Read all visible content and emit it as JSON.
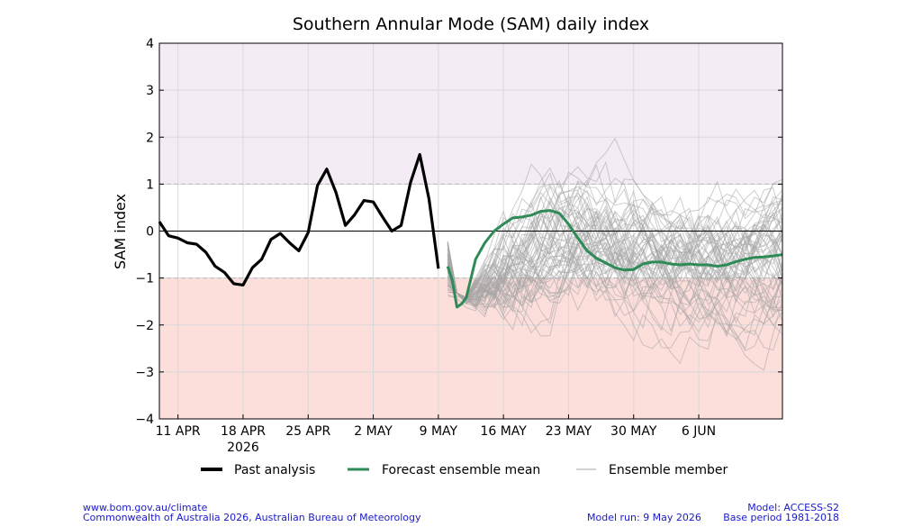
{
  "chart_data": {
    "type": "line",
    "title": "Southern Annular Mode (SAM) daily index",
    "ylabel": "SAM index",
    "xlabel": "",
    "ylim": [
      -4,
      4
    ],
    "yticks": [
      "−4",
      "−3",
      "−2",
      "−1",
      "0",
      "1",
      "2",
      "3",
      "4"
    ],
    "xlim_day": [
      0,
      67
    ],
    "x_tick_labels": [
      {
        "day": 2,
        "label": "11 APR"
      },
      {
        "day": 9,
        "label": "18 APR",
        "sublabel": "2026"
      },
      {
        "day": 16,
        "label": "25 APR"
      },
      {
        "day": 23,
        "label": "2 MAY"
      },
      {
        "day": 30,
        "label": "9 MAY"
      },
      {
        "day": 37,
        "label": "16 MAY"
      },
      {
        "day": 44,
        "label": "23 MAY"
      },
      {
        "day": 51,
        "label": "30 MAY"
      },
      {
        "day": 58,
        "label": "6 JUN"
      }
    ],
    "bands": [
      {
        "from": 1,
        "to": 4,
        "color": "#f3ecf4"
      },
      {
        "from": -4,
        "to": -1,
        "color": "#fcdedb"
      }
    ],
    "grid": true,
    "legend_position": "bottom",
    "series": [
      {
        "name": "Past analysis",
        "color": "#000000",
        "x": [
          0,
          1,
          2,
          3,
          4,
          5,
          6,
          7,
          8,
          9,
          10,
          11,
          12,
          13,
          14,
          15,
          16,
          17,
          18,
          19,
          20,
          21,
          22,
          23,
          24,
          25,
          26,
          27,
          28,
          29,
          30
        ],
        "y": [
          0.2,
          -0.1,
          -0.15,
          -0.25,
          -0.28,
          -0.45,
          -0.75,
          -0.88,
          -1.12,
          -1.15,
          -0.78,
          -0.6,
          -0.18,
          -0.05,
          -0.25,
          -0.42,
          -0.03,
          0.97,
          1.32,
          0.82,
          0.12,
          0.35,
          0.65,
          0.62,
          0.3,
          0.0,
          0.12,
          1.03,
          1.63,
          0.68,
          -0.8
        ]
      },
      {
        "name": "Forecast ensemble mean",
        "color": "#2e8b57",
        "x": [
          31,
          31.5,
          32,
          32.5,
          33,
          34,
          35,
          36,
          37,
          38,
          39,
          40,
          41,
          42,
          43,
          44,
          45,
          46,
          47,
          48,
          49,
          50,
          51,
          52,
          53,
          54,
          55,
          56,
          57,
          58,
          59,
          60,
          61,
          62,
          63,
          64,
          65,
          66,
          67
        ],
        "y": [
          -0.75,
          -1.05,
          -1.62,
          -1.55,
          -1.42,
          -0.6,
          -0.25,
          0.0,
          0.15,
          0.28,
          0.3,
          0.34,
          0.42,
          0.44,
          0.38,
          0.15,
          -0.15,
          -0.42,
          -0.58,
          -0.68,
          -0.78,
          -0.83,
          -0.82,
          -0.7,
          -0.66,
          -0.66,
          -0.7,
          -0.72,
          -0.7,
          -0.72,
          -0.72,
          -0.75,
          -0.72,
          -0.65,
          -0.6,
          -0.56,
          -0.55,
          -0.53,
          -0.5
        ]
      },
      {
        "name": "Ensemble member",
        "color": "#a6a6a6",
        "members": 60,
        "spread_from_day": 31
      }
    ]
  },
  "legend": {
    "past": "Past analysis",
    "mean": "Forecast ensemble mean",
    "member": "Ensemble member"
  },
  "footer": {
    "url": "www.bom.gov.au/climate",
    "copyright": "Commonwealth of Australia 2026, Australian Bureau of Meteorology",
    "model": "Model: ACCESS-S2",
    "model_run": "Model run: 9 May 2026",
    "base_period": "Base period 1981-2018"
  }
}
